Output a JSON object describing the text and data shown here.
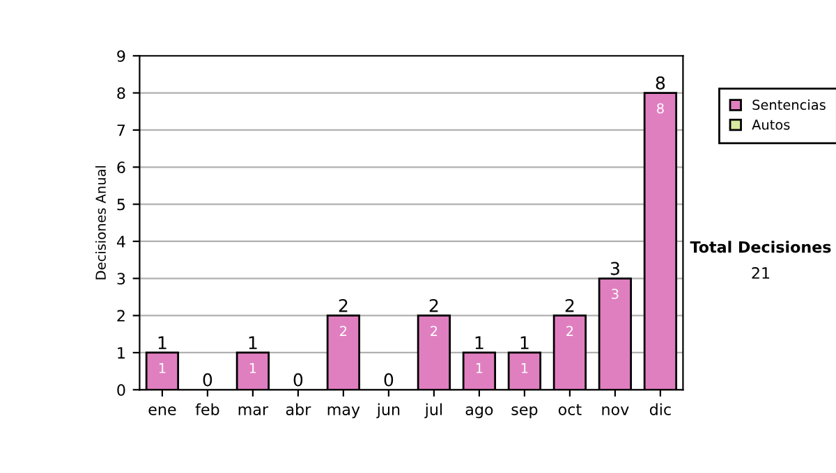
{
  "chart_data": {
    "type": "bar",
    "stacked": true,
    "ylabel": "Decisiones Anual",
    "categories": [
      "ene",
      "feb",
      "mar",
      "abr",
      "may",
      "jun",
      "jul",
      "ago",
      "sep",
      "oct",
      "nov",
      "dic"
    ],
    "series": [
      {
        "name": "Sentencias",
        "color": "#e07fc0",
        "values": [
          1,
          0,
          1,
          0,
          2,
          0,
          2,
          1,
          1,
          2,
          3,
          8
        ],
        "value_labels": [
          "1",
          null,
          "1",
          null,
          "2",
          null,
          "2",
          "1",
          "1",
          "2",
          "3",
          "8"
        ]
      },
      {
        "name": "Autos",
        "color": "#d8eaa0",
        "values": [
          0,
          0,
          0,
          0,
          0,
          0,
          0,
          0,
          0,
          0,
          0,
          0
        ]
      }
    ],
    "totals": [
      "1",
      "0",
      "1",
      "0",
      "2",
      "0",
      "2",
      "1",
      "1",
      "2",
      "3",
      "8"
    ],
    "ylim": [
      0,
      9
    ],
    "yticks": [
      0,
      1,
      2,
      3,
      4,
      5,
      6,
      7,
      8,
      9
    ],
    "grid": "y",
    "legend": "right",
    "annotations": [
      "Total Decisiones",
      "21"
    ]
  }
}
